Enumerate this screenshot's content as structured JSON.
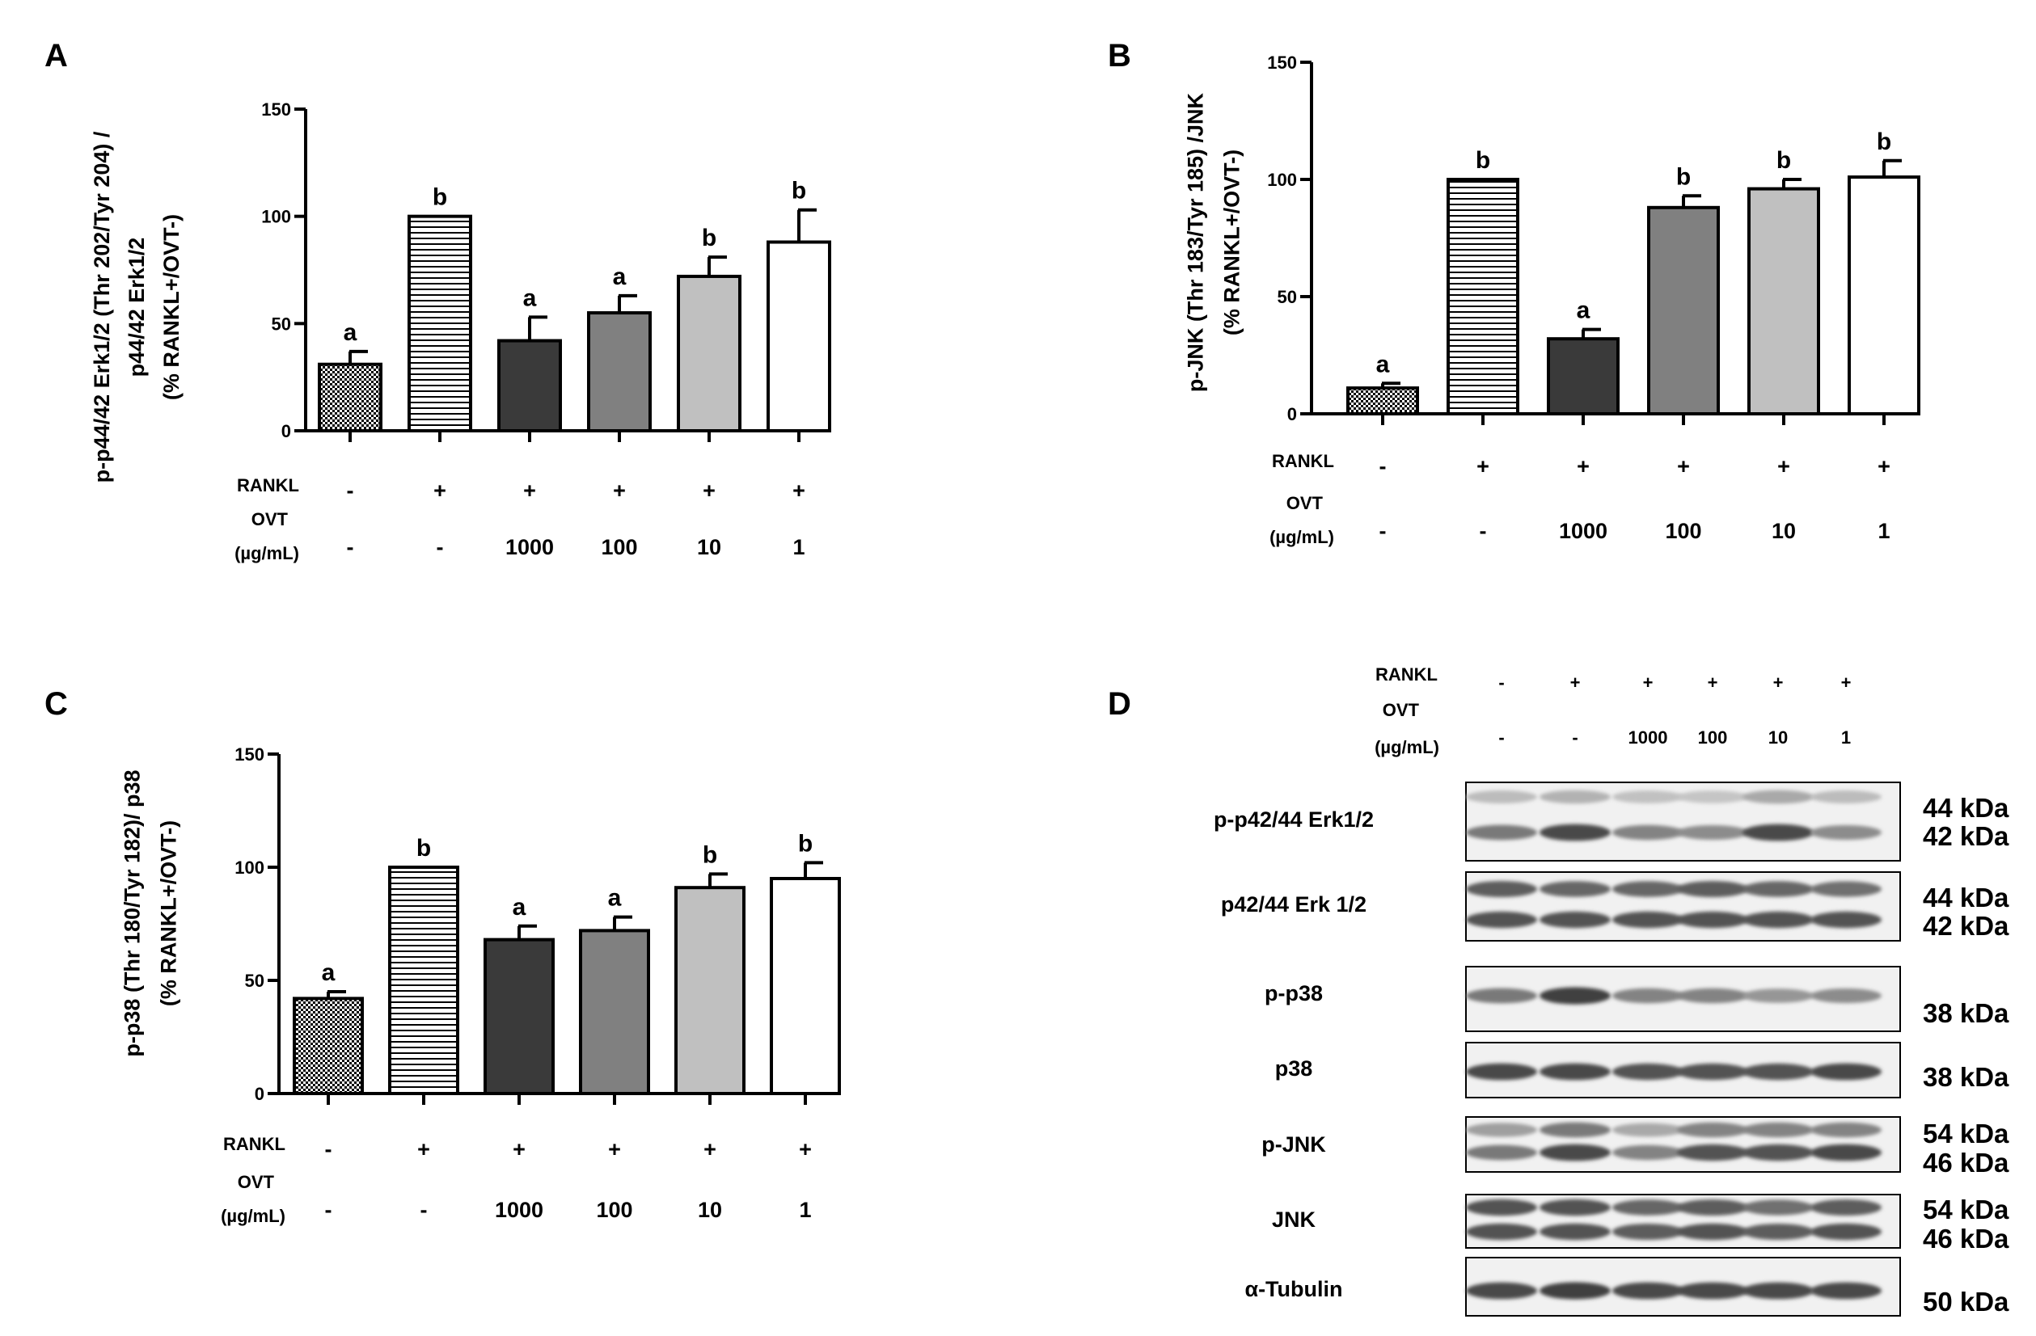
{
  "chart_data": [
    {
      "type": "bar",
      "panel": "A",
      "ylabel_lines": [
        "p-p44/42 Erk1/2 (Thr 202/Tyr 204) /",
        "p44/42 Erk1/2",
        "(% RANKL+/OVT-)"
      ],
      "ylim": [
        0,
        150
      ],
      "yticks": [
        "0",
        "50",
        "100",
        "150"
      ],
      "values": [
        31,
        100,
        42,
        55,
        72,
        88
      ],
      "errors": [
        6,
        0,
        11,
        8,
        9,
        15
      ],
      "sig": [
        "a",
        "b",
        "a",
        "a",
        "b",
        "b"
      ],
      "rankl_label": "RANKL",
      "ovt_label": "OVT",
      "unit_label": "(µg/mL)",
      "rankl": [
        "-",
        "+",
        "+",
        "+",
        "+",
        "+"
      ],
      "ovt": [
        "-",
        "-",
        "1000",
        "100",
        "10",
        "1"
      ]
    },
    {
      "type": "bar",
      "panel": "B",
      "ylabel_lines": [
        "p-JNK (Thr 183/Tyr 185) /JNK",
        "(% RANKL+/OVT-)"
      ],
      "ylim": [
        0,
        150
      ],
      "yticks": [
        "0",
        "50",
        "100",
        "150"
      ],
      "values": [
        11,
        100,
        32,
        88,
        96,
        101
      ],
      "errors": [
        2,
        0,
        4,
        5,
        4,
        7
      ],
      "sig": [
        "a",
        "b",
        "a",
        "b",
        "b",
        "b"
      ],
      "rankl_label": "RANKL",
      "ovt_label": "OVT",
      "unit_label": "(µg/mL)",
      "rankl": [
        "-",
        "+",
        "+",
        "+",
        "+",
        "+"
      ],
      "ovt": [
        "-",
        "-",
        "1000",
        "100",
        "10",
        "1"
      ]
    },
    {
      "type": "bar",
      "panel": "C",
      "ylabel_lines": [
        "p-p38 (Thr 180/Tyr 182)/ p38",
        "(% RANKL+/OVT-)"
      ],
      "ylim": [
        0,
        150
      ],
      "yticks": [
        "0",
        "50",
        "100",
        "150"
      ],
      "values": [
        42,
        100,
        68,
        72,
        91,
        95
      ],
      "errors": [
        3,
        0,
        6,
        6,
        6,
        7
      ],
      "sig": [
        "a",
        "b",
        "a",
        "a",
        "b",
        "b"
      ],
      "rankl_label": "RANKL",
      "ovt_label": "OVT",
      "unit_label": "(µg/mL)",
      "rankl": [
        "-",
        "+",
        "+",
        "+",
        "+",
        "+"
      ],
      "ovt": [
        "-",
        "-",
        "1000",
        "100",
        "10",
        "1"
      ]
    }
  ],
  "bar_fills": [
    "#ffffff",
    "#ffffff",
    "#3a3a3a",
    "#808080",
    "#c0c0c0",
    "#ffffff"
  ],
  "blot": {
    "panel": "D",
    "rankl_label": "RANKL",
    "ovt_label": "OVT",
    "unit_label": "(µg/mL)",
    "rankl": [
      "-",
      "+",
      "+",
      "+",
      "+",
      "+"
    ],
    "ovt": [
      "-",
      "-",
      "1000",
      "100",
      "10",
      "1"
    ],
    "rows": [
      {
        "label": "p-p42/44 Erk1/2",
        "kda": [
          "44 kDa",
          "42 kDa"
        ],
        "bands": [
          [
            0.25,
            0.3,
            0.22,
            0.2,
            0.35,
            0.25
          ],
          [
            0.6,
            0.85,
            0.55,
            0.5,
            0.85,
            0.5
          ]
        ]
      },
      {
        "label": "p42/44 Erk 1/2",
        "kda": [
          "44 kDa",
          "42 kDa"
        ],
        "bands": [
          [
            0.75,
            0.7,
            0.7,
            0.75,
            0.7,
            0.65
          ],
          [
            0.8,
            0.8,
            0.8,
            0.8,
            0.8,
            0.8
          ]
        ]
      },
      {
        "label": "p-p38",
        "kda": [
          "38 kDa"
        ],
        "bands": [
          [
            0.6,
            0.9,
            0.55,
            0.55,
            0.45,
            0.5
          ]
        ]
      },
      {
        "label": "p38",
        "kda": [
          "38 kDa"
        ],
        "bands": [
          [
            0.85,
            0.85,
            0.8,
            0.8,
            0.8,
            0.85
          ]
        ]
      },
      {
        "label": "p-JNK",
        "kda": [
          "54 kDa",
          "46 kDa"
        ],
        "bands": [
          [
            0.4,
            0.6,
            0.35,
            0.55,
            0.55,
            0.55
          ],
          [
            0.6,
            0.85,
            0.55,
            0.8,
            0.8,
            0.85
          ]
        ]
      },
      {
        "label": "JNK",
        "kda": [
          "54 kDa",
          "46 kDa"
        ],
        "bands": [
          [
            0.8,
            0.8,
            0.7,
            0.75,
            0.65,
            0.75
          ],
          [
            0.8,
            0.8,
            0.75,
            0.8,
            0.75,
            0.8
          ]
        ]
      },
      {
        "label": "α-Tubulin",
        "kda": [
          "50 kDa"
        ],
        "bands": [
          [
            0.85,
            0.9,
            0.85,
            0.85,
            0.85,
            0.85
          ]
        ]
      }
    ]
  }
}
